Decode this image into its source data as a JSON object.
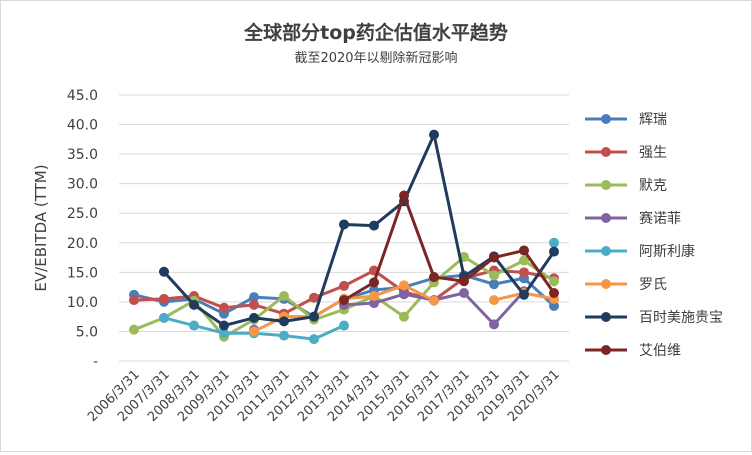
{
  "chart_data": {
    "type": "line",
    "title": "全球部分top药企估值水平趋势",
    "subtitle": "截至2020年以剔除新冠影响",
    "ylabel": "EV/EBITDA (TTM)",
    "xlabel": "",
    "ylim": [
      0,
      45
    ],
    "yticks": [
      "-",
      "5.0",
      "10.0",
      "15.0",
      "20.0",
      "25.0",
      "30.0",
      "35.0",
      "40.0",
      "45.0"
    ],
    "grid": true,
    "legend_position": "right",
    "categories": [
      "2006/3/31",
      "2007/3/31",
      "2008/3/31",
      "2009/3/31",
      "2010/3/31",
      "2011/3/31",
      "2012/3/31",
      "2013/3/31",
      "2014/3/31",
      "2015/3/31",
      "2016/3/31",
      "2017/3/31",
      "2018/3/31",
      "2019/3/31",
      "2020/3/31"
    ],
    "series": [
      {
        "name": "辉瑞",
        "color": "#4a7ebb",
        "values": [
          11.2,
          10.0,
          10.5,
          8.0,
          10.8,
          10.5,
          7.5,
          10.5,
          12.0,
          12.5,
          14.0,
          14.5,
          13.0,
          14.0,
          9.3
        ]
      },
      {
        "name": "强生",
        "color": "#c0504d",
        "values": [
          10.3,
          10.5,
          11.0,
          9.0,
          9.5,
          8.0,
          10.7,
          12.7,
          15.3,
          11.7,
          10.3,
          14.0,
          15.3,
          15.0,
          14.0
        ]
      },
      {
        "name": "默克",
        "color": "#9bbb59",
        "values": [
          5.3,
          7.3,
          10.2,
          4.1,
          7.0,
          11.0,
          7.0,
          8.7,
          11.0,
          7.5,
          13.3,
          17.6,
          14.5,
          17.0,
          13.5
        ]
      },
      {
        "name": "赛诺菲",
        "color": "#8064a2",
        "values": [
          null,
          null,
          null,
          null,
          5.3,
          null,
          null,
          9.5,
          9.8,
          11.3,
          10.3,
          11.5,
          6.2,
          11.8,
          null
        ]
      },
      {
        "name": "阿斯利康",
        "color": "#4bacc6",
        "values": [
          null,
          7.3,
          6.0,
          4.7,
          4.7,
          4.3,
          3.7,
          6.0,
          null,
          null,
          null,
          null,
          null,
          null,
          20.0
        ]
      },
      {
        "name": "罗氏",
        "color": "#f79646",
        "values": [
          null,
          null,
          null,
          null,
          5.0,
          7.5,
          7.5,
          10.5,
          11.0,
          12.8,
          10.2,
          null,
          10.3,
          11.5,
          10.5
        ]
      },
      {
        "name": "百时美施贵宝",
        "color": "#1f3b5e",
        "values": [
          null,
          15.1,
          9.5,
          6.0,
          7.3,
          6.7,
          7.5,
          23.1,
          22.9,
          27.0,
          38.3,
          14.3,
          17.7,
          11.2,
          18.5
        ]
      },
      {
        "name": "艾伯维",
        "color": "#7b2525",
        "values": [
          null,
          null,
          null,
          null,
          null,
          null,
          null,
          10.3,
          13.3,
          28.0,
          14.2,
          13.5,
          17.5,
          18.7,
          11.5
        ]
      }
    ]
  }
}
